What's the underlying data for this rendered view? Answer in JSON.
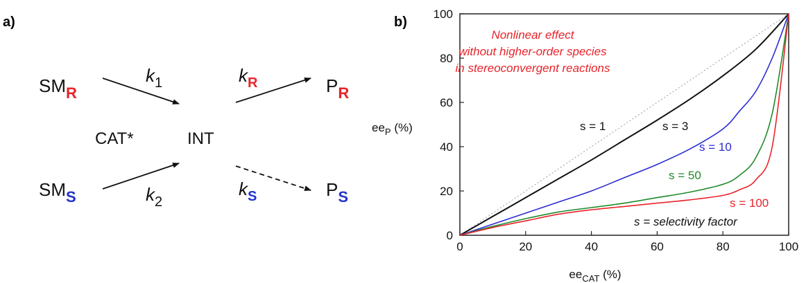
{
  "panel_a": {
    "label": "a)",
    "species": {
      "sm_r": {
        "base": "SM",
        "sub": "R"
      },
      "sm_s": {
        "base": "SM",
        "sub": "S"
      },
      "cat": "CAT*",
      "int": "INT",
      "p_r": {
        "base": "P",
        "sub": "R"
      },
      "p_s": {
        "base": "P",
        "sub": "S"
      }
    },
    "rates": {
      "k1": {
        "base": "k",
        "sub": "1"
      },
      "k2": {
        "base": "k",
        "sub": "2"
      },
      "kr": {
        "base": "k",
        "sub": "R"
      },
      "ks": {
        "base": "k",
        "sub": "S"
      }
    },
    "colors": {
      "r": "#e8232a",
      "s": "#2233cc"
    }
  },
  "panel_b": {
    "label": "b)",
    "annotation": [
      "Nonlinear effect",
      "without higher-order species",
      "in stereoconvergent reactions"
    ],
    "footnote": "s = selectivity factor",
    "annotation_color": "#e8232a"
  },
  "chart_data": {
    "type": "line",
    "xlabel": {
      "base": "ee",
      "sub": "CAT",
      "suffix": " (%)"
    },
    "ylabel": {
      "base": "ee",
      "sub": "P",
      "suffix": " (%)"
    },
    "xlim": [
      0,
      100
    ],
    "ylim": [
      0,
      100
    ],
    "xticks": [
      "0",
      "20",
      "40",
      "60",
      "80",
      "100"
    ],
    "yticks": [
      "0",
      "20",
      "40",
      "60",
      "80",
      "100"
    ],
    "grid": false,
    "series": [
      {
        "label": "s = 1",
        "color": "#999999",
        "dashed": true,
        "x": [
          0,
          100
        ],
        "y": [
          0,
          100
        ]
      },
      {
        "label": "s = 3",
        "color": "#111111",
        "dashed": false,
        "x": [
          0,
          10,
          20,
          30,
          40,
          50,
          60,
          70,
          80,
          90,
          100
        ],
        "y": [
          0,
          8.5,
          17,
          25.5,
          34,
          43,
          52,
          61.5,
          72,
          84,
          100
        ]
      },
      {
        "label": "s = 10",
        "color": "#2a2ad4",
        "dashed": false,
        "x": [
          0,
          10,
          20,
          30,
          40,
          50,
          60,
          70,
          80,
          85,
          90,
          95,
          100
        ],
        "y": [
          0,
          5,
          10,
          15,
          20,
          26,
          32,
          39,
          48,
          56,
          65,
          80,
          100
        ]
      },
      {
        "label": "s = 50",
        "color": "#1e8a2a",
        "dashed": false,
        "x": [
          0,
          10,
          20,
          30,
          40,
          50,
          60,
          70,
          80,
          85,
          90,
          95,
          100
        ],
        "y": [
          0,
          4,
          7.5,
          10.5,
          12.5,
          14.5,
          17,
          19.5,
          23,
          27,
          35,
          55,
          100
        ]
      },
      {
        "label": "s = 100",
        "color": "#e8232a",
        "dashed": false,
        "x": [
          0,
          10,
          20,
          30,
          40,
          50,
          60,
          70,
          80,
          85,
          90,
          95,
          100
        ],
        "y": [
          0,
          3.5,
          6.5,
          9.5,
          11.5,
          13,
          14.5,
          16,
          18,
          20.5,
          25,
          40,
          100
        ]
      }
    ]
  }
}
